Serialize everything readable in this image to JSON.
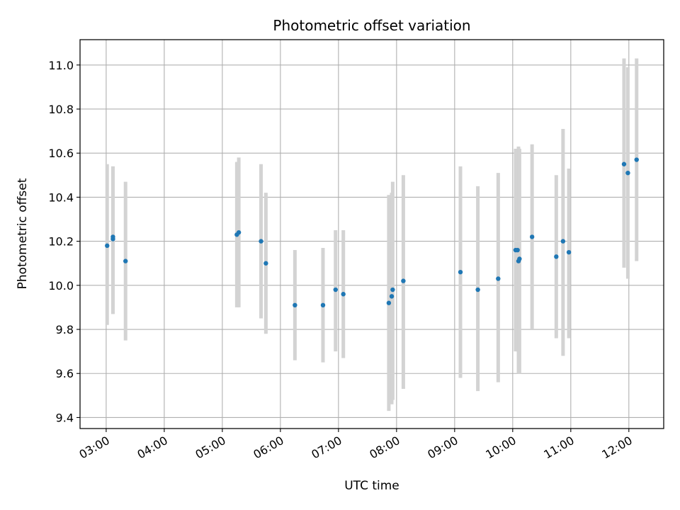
{
  "chart_data": {
    "type": "scatter",
    "title": "Photometric offset variation",
    "xlabel": "UTC time",
    "ylabel": "Photometric offset",
    "x_ticks": [
      "03:00",
      "04:00",
      "05:00",
      "06:00",
      "07:00",
      "08:00",
      "09:00",
      "10:00",
      "11:00",
      "12:00"
    ],
    "y_ticks": [
      "9.4",
      "9.6",
      "9.8",
      "10.0",
      "10.2",
      "10.4",
      "10.6",
      "10.8",
      "11.0"
    ],
    "xlim": [
      "02:33",
      "12:36"
    ],
    "ylim": [
      9.35,
      11.115
    ],
    "grid": true,
    "marker_color": "#1f77b4",
    "errorbar_color": "#d3d3d3",
    "points": [
      {
        "x": "03:01",
        "y": 10.18,
        "low": 9.82,
        "high": 10.55
      },
      {
        "x": "03:07",
        "y": 10.21,
        "low": 9.87,
        "high": 10.54
      },
      {
        "x": "03:07",
        "y": 10.22,
        "low": 9.87,
        "high": 10.54
      },
      {
        "x": "03:20",
        "y": 10.11,
        "low": 9.75,
        "high": 10.47
      },
      {
        "x": "05:15",
        "y": 10.23,
        "low": 9.9,
        "high": 10.56
      },
      {
        "x": "05:17",
        "y": 10.24,
        "low": 9.9,
        "high": 10.58
      },
      {
        "x": "05:40",
        "y": 10.2,
        "low": 9.85,
        "high": 10.55
      },
      {
        "x": "05:45",
        "y": 10.1,
        "low": 9.78,
        "high": 10.42
      },
      {
        "x": "06:15",
        "y": 9.91,
        "low": 9.66,
        "high": 10.16
      },
      {
        "x": "06:44",
        "y": 9.91,
        "low": 9.65,
        "high": 10.17
      },
      {
        "x": "06:57",
        "y": 9.98,
        "low": 9.7,
        "high": 10.25
      },
      {
        "x": "07:05",
        "y": 9.96,
        "low": 9.67,
        "high": 10.25
      },
      {
        "x": "07:52",
        "y": 9.92,
        "low": 9.43,
        "high": 10.41
      },
      {
        "x": "07:55",
        "y": 9.95,
        "low": 9.46,
        "high": 10.42
      },
      {
        "x": "07:56",
        "y": 9.98,
        "low": 9.48,
        "high": 10.47
      },
      {
        "x": "08:07",
        "y": 10.02,
        "low": 9.53,
        "high": 10.5
      },
      {
        "x": "09:06",
        "y": 10.06,
        "low": 9.58,
        "high": 10.54
      },
      {
        "x": "09:24",
        "y": 9.98,
        "low": 9.52,
        "high": 10.45
      },
      {
        "x": "09:45",
        "y": 10.03,
        "low": 9.56,
        "high": 10.51
      },
      {
        "x": "10:03",
        "y": 10.16,
        "low": 9.7,
        "high": 10.62
      },
      {
        "x": "10:05",
        "y": 10.16,
        "low": 9.7,
        "high": 10.62
      },
      {
        "x": "10:06",
        "y": 10.11,
        "low": 9.6,
        "high": 10.63
      },
      {
        "x": "10:07",
        "y": 10.12,
        "low": 9.6,
        "high": 10.62
      },
      {
        "x": "10:20",
        "y": 10.22,
        "low": 9.8,
        "high": 10.64
      },
      {
        "x": "10:45",
        "y": 10.13,
        "low": 9.76,
        "high": 10.5
      },
      {
        "x": "10:52",
        "y": 10.2,
        "low": 9.68,
        "high": 10.71
      },
      {
        "x": "10:58",
        "y": 10.15,
        "low": 9.76,
        "high": 10.53
      },
      {
        "x": "11:55",
        "y": 10.55,
        "low": 10.08,
        "high": 11.03
      },
      {
        "x": "11:59",
        "y": 10.51,
        "low": 10.03,
        "high": 10.99
      },
      {
        "x": "12:08",
        "y": 10.57,
        "low": 10.11,
        "high": 11.03
      }
    ]
  }
}
